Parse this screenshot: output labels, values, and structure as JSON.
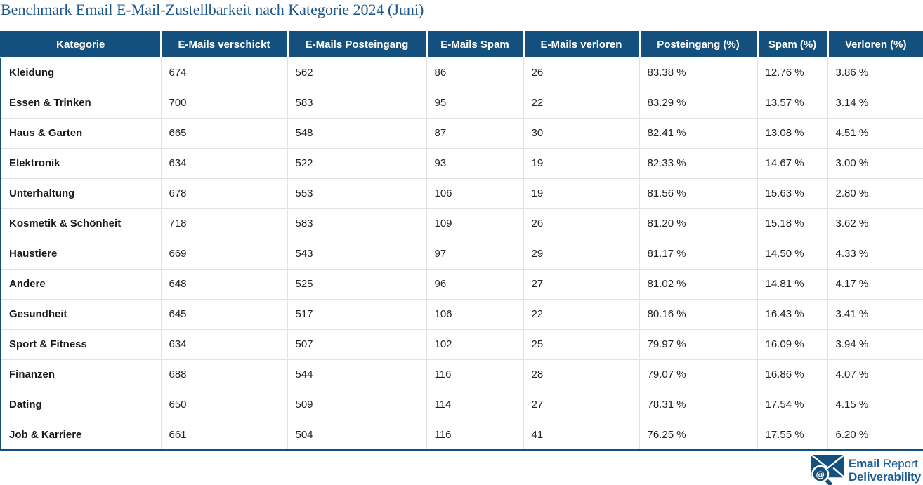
{
  "chart_data": {
    "type": "table",
    "title": "Benchmark Email E-Mail-Zustellbarkeit nach Kategorie 2024 (Juni)",
    "columns": [
      "Kategorie",
      "E-Mails verschickt",
      "E-Mails Posteingang",
      "E-Mails Spam",
      "E-Mails verloren",
      "Posteingang (%)",
      "Spam (%)",
      "Verloren (%)"
    ],
    "rows": [
      [
        "Kleidung",
        "674",
        "562",
        "86",
        "26",
        "83.38 %",
        "12.76 %",
        "3.86 %"
      ],
      [
        "Essen & Trinken",
        "700",
        "583",
        "95",
        "22",
        "83.29 %",
        "13.57 %",
        "3.14 %"
      ],
      [
        "Haus & Garten",
        "665",
        "548",
        "87",
        "30",
        "82.41 %",
        "13.08 %",
        "4.51 %"
      ],
      [
        "Elektronik",
        "634",
        "522",
        "93",
        "19",
        "82.33 %",
        "14.67 %",
        "3.00 %"
      ],
      [
        "Unterhaltung",
        "678",
        "553",
        "106",
        "19",
        "81.56 %",
        "15.63 %",
        "2.80 %"
      ],
      [
        "Kosmetik & Schönheit",
        "718",
        "583",
        "109",
        "26",
        "81.20 %",
        "15.18 %",
        "3.62 %"
      ],
      [
        "Haustiere",
        "669",
        "543",
        "97",
        "29",
        "81.17 %",
        "14.50 %",
        "4.33 %"
      ],
      [
        "Andere",
        "648",
        "525",
        "96",
        "27",
        "81.02 %",
        "14.81 %",
        "4.17 %"
      ],
      [
        "Gesundheit",
        "645",
        "517",
        "106",
        "22",
        "80.16 %",
        "16.43 %",
        "3.41 %"
      ],
      [
        "Sport & Fitness",
        "634",
        "507",
        "102",
        "25",
        "79.97 %",
        "16.09 %",
        "3.94 %"
      ],
      [
        "Finanzen",
        "688",
        "544",
        "116",
        "28",
        "79.07 %",
        "16.86 %",
        "4.07 %"
      ],
      [
        "Dating",
        "650",
        "509",
        "114",
        "27",
        "78.31 %",
        "17.54 %",
        "4.15 %"
      ],
      [
        "Job & Karriere",
        "661",
        "504",
        "116",
        "41",
        "76.25 %",
        "17.55 %",
        "6.20 %"
      ]
    ]
  },
  "logo": {
    "line1_bold": "Email",
    "line1_light": "Report",
    "line2": "Deliverability"
  },
  "colors": {
    "header_bg": "#14507e",
    "title_color": "#1d578c",
    "logo_color": "#1d5a96",
    "outer_border": "#14507e",
    "row_border": "#e2e2e2",
    "body_text": "#222222"
  }
}
